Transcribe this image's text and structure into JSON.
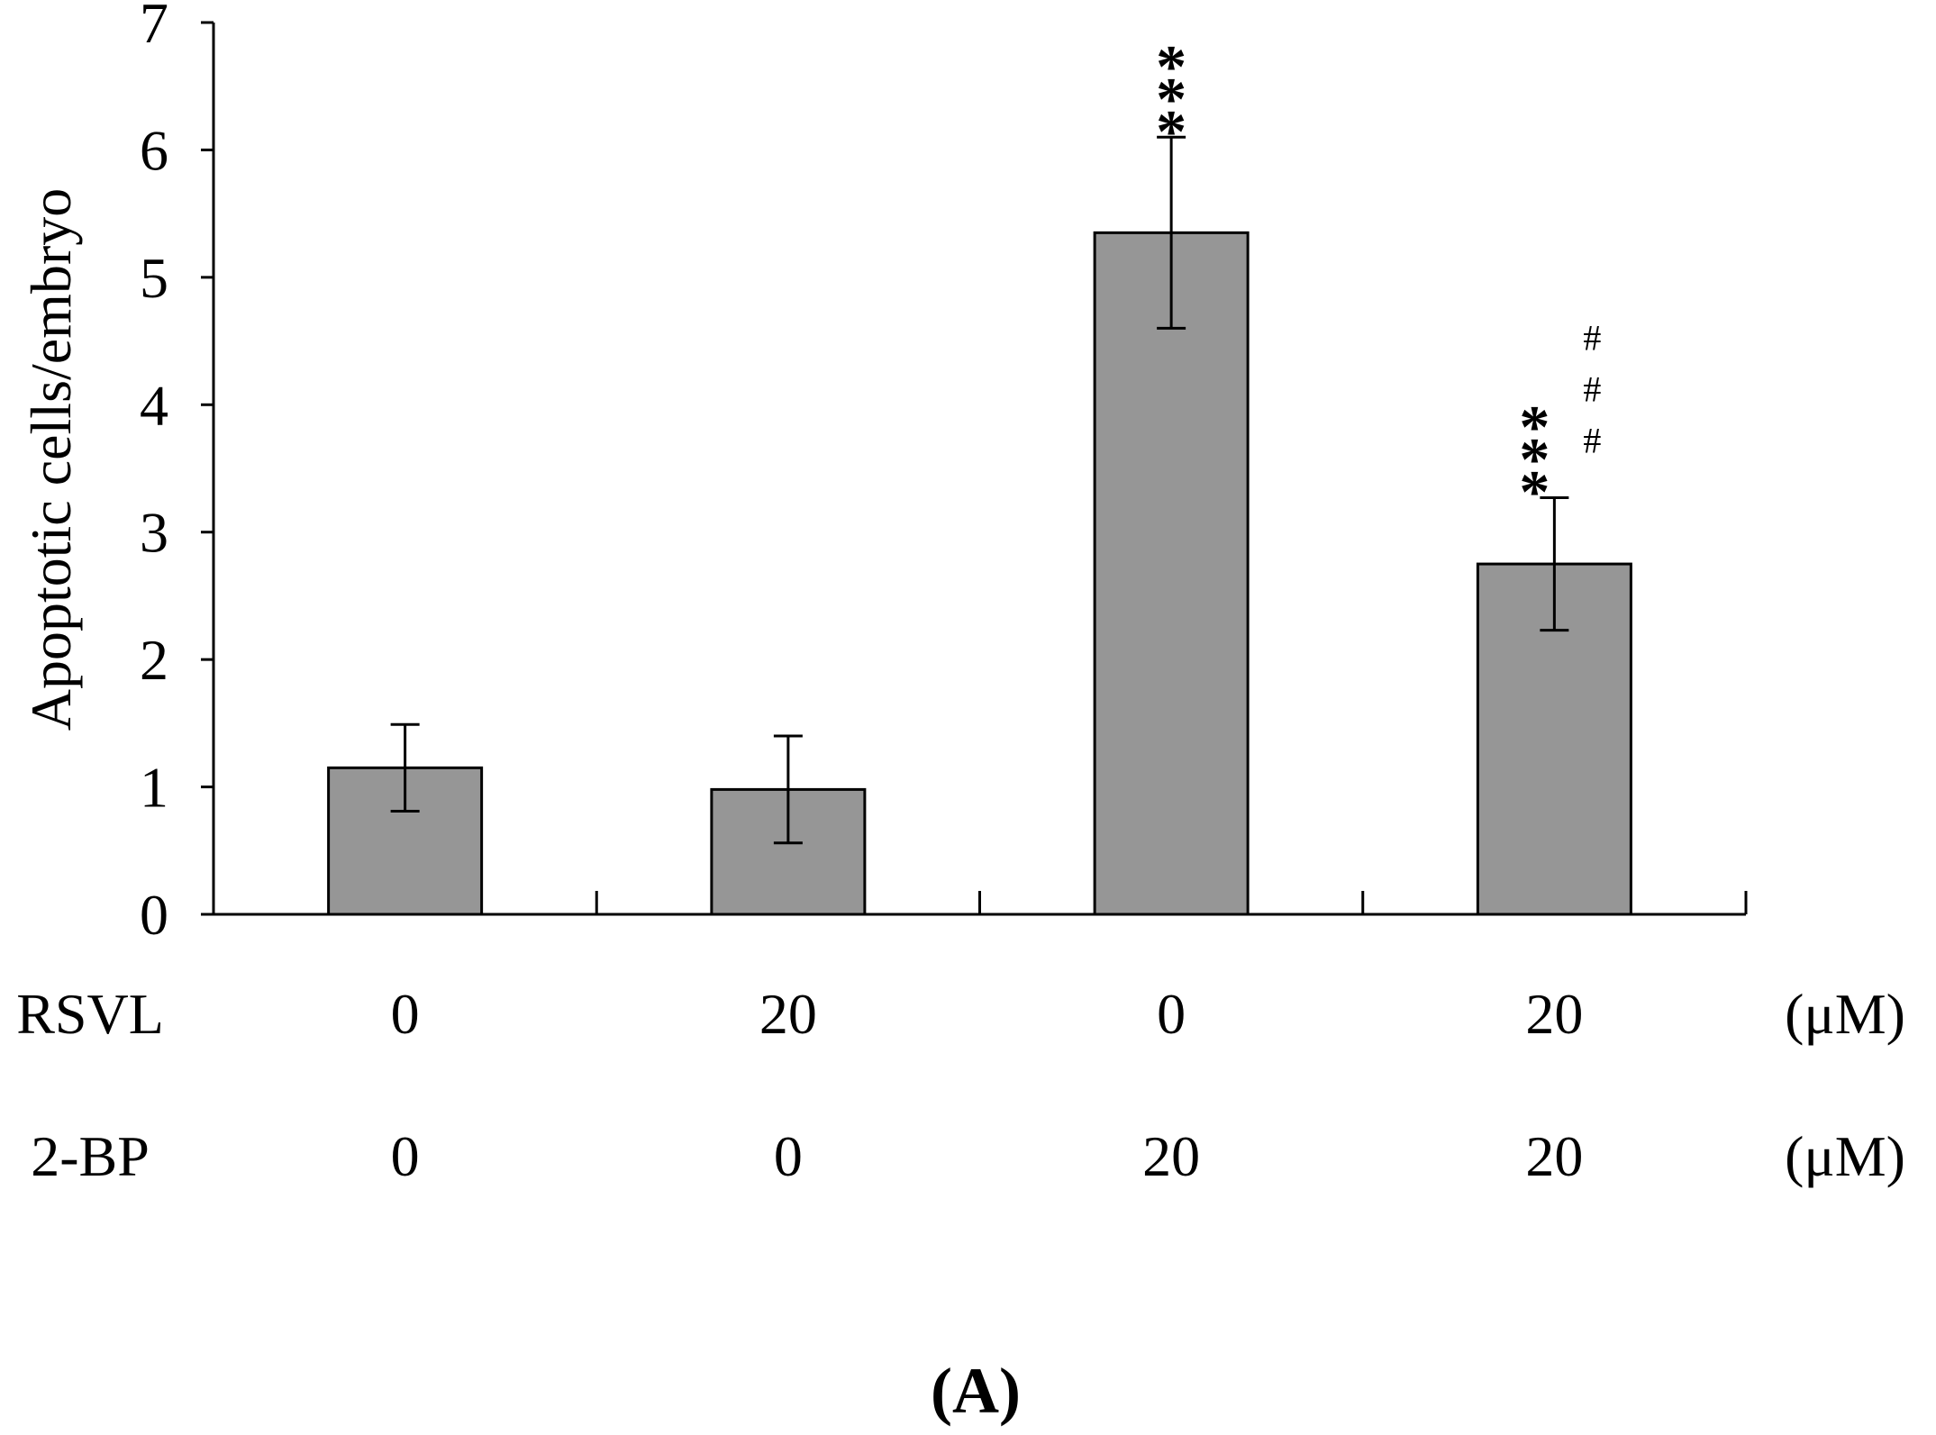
{
  "chart_data": {
    "type": "bar",
    "ylabel": "Apoptotic cells/embryo",
    "ylim": [
      0,
      7
    ],
    "yticks": [
      "0",
      "1",
      "2",
      "3",
      "4",
      "5",
      "6",
      "7"
    ],
    "bar_color": "#969696",
    "categories": [
      "1",
      "2",
      "3",
      "4"
    ],
    "values": [
      1.15,
      0.98,
      5.35,
      2.75
    ],
    "errors": [
      0.34,
      0.42,
      0.75,
      0.52
    ],
    "significance": [
      {
        "stars": "",
        "hashes": ""
      },
      {
        "stars": "",
        "hashes": ""
      },
      {
        "stars": "***",
        "hashes": ""
      },
      {
        "stars": "***",
        "hashes": "###"
      }
    ],
    "treatment_rows": [
      {
        "label": "RSVL",
        "values": [
          "0",
          "20",
          "0",
          "20"
        ],
        "unit": "(μM)"
      },
      {
        "label": "2-BP",
        "values": [
          "0",
          "0",
          "20",
          "20"
        ],
        "unit": "(μM)"
      }
    ],
    "panel_label": "(A)"
  }
}
